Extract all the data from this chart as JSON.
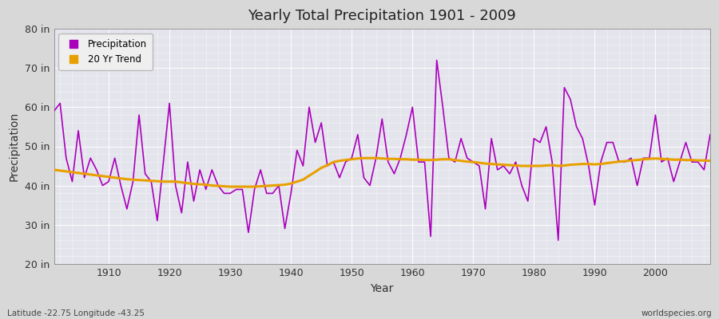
{
  "title": "Yearly Total Precipitation 1901 - 2009",
  "xlabel": "Year",
  "ylabel": "Precipitation",
  "lat_lon_label": "Latitude -22.75 Longitude -43.25",
  "watermark": "worldspecies.org",
  "ylim": [
    20,
    80
  ],
  "yticks": [
    20,
    30,
    40,
    50,
    60,
    70,
    80
  ],
  "ytick_labels": [
    "20 in",
    "30 in",
    "40 in",
    "50 in",
    "60 in",
    "70 in",
    "80 in"
  ],
  "xlim": [
    1901,
    2009
  ],
  "xticks": [
    1910,
    1920,
    1930,
    1940,
    1950,
    1960,
    1970,
    1980,
    1990,
    2000
  ],
  "precip_color": "#aa00bb",
  "trend_color": "#e8a000",
  "fig_bg_color": "#d8d8d8",
  "plot_bg_color": "#e4e4ec",
  "years": [
    1901,
    1902,
    1903,
    1904,
    1905,
    1906,
    1907,
    1908,
    1909,
    1910,
    1911,
    1912,
    1913,
    1914,
    1915,
    1916,
    1917,
    1918,
    1919,
    1920,
    1921,
    1922,
    1923,
    1924,
    1925,
    1926,
    1927,
    1928,
    1929,
    1930,
    1931,
    1932,
    1933,
    1934,
    1935,
    1936,
    1937,
    1938,
    1939,
    1940,
    1941,
    1942,
    1943,
    1944,
    1945,
    1946,
    1947,
    1948,
    1949,
    1950,
    1951,
    1952,
    1953,
    1954,
    1955,
    1956,
    1957,
    1958,
    1959,
    1960,
    1961,
    1962,
    1963,
    1964,
    1965,
    1966,
    1967,
    1968,
    1969,
    1970,
    1971,
    1972,
    1973,
    1974,
    1975,
    1976,
    1977,
    1978,
    1979,
    1980,
    1981,
    1982,
    1983,
    1984,
    1985,
    1986,
    1987,
    1988,
    1989,
    1990,
    1991,
    1992,
    1993,
    1994,
    1995,
    1996,
    1997,
    1998,
    1999,
    2000,
    2001,
    2002,
    2003,
    2004,
    2005,
    2006,
    2007,
    2008,
    2009
  ],
  "precip": [
    59,
    61,
    47,
    41,
    54,
    42,
    47,
    44,
    40,
    41,
    47,
    40,
    34,
    41,
    58,
    43,
    41,
    31,
    46,
    61,
    40,
    33,
    46,
    36,
    44,
    39,
    44,
    40,
    38,
    38,
    39,
    39,
    28,
    39,
    44,
    38,
    38,
    40,
    29,
    38,
    49,
    45,
    60,
    51,
    56,
    45,
    46,
    42,
    46,
    47,
    53,
    42,
    40,
    47,
    57,
    46,
    43,
    47,
    53,
    60,
    46,
    46,
    27,
    72,
    60,
    47,
    46,
    52,
    47,
    46,
    45,
    34,
    52,
    44,
    45,
    43,
    46,
    40,
    36,
    52,
    51,
    55,
    46,
    26,
    65,
    62,
    55,
    52,
    45,
    35,
    46,
    51,
    51,
    46,
    46,
    47,
    40,
    47,
    47,
    58,
    46,
    47,
    41,
    46,
    51,
    46,
    46,
    44,
    53
  ],
  "trend": [
    44.0,
    43.8,
    43.6,
    43.4,
    43.2,
    43.0,
    42.8,
    42.6,
    42.4,
    42.2,
    42.0,
    41.8,
    41.6,
    41.5,
    41.4,
    41.3,
    41.2,
    41.1,
    41.0,
    41.0,
    41.0,
    40.8,
    40.6,
    40.4,
    40.3,
    40.2,
    40.0,
    39.9,
    39.8,
    39.7,
    39.7,
    39.7,
    39.7,
    39.7,
    39.8,
    39.9,
    40.0,
    40.1,
    40.2,
    40.5,
    41.0,
    41.5,
    42.5,
    43.5,
    44.5,
    45.2,
    46.0,
    46.3,
    46.5,
    46.7,
    46.9,
    47.0,
    47.0,
    47.0,
    46.9,
    46.8,
    46.8,
    46.7,
    46.7,
    46.6,
    46.6,
    46.5,
    46.5,
    46.6,
    46.7,
    46.7,
    46.5,
    46.3,
    46.1,
    46.0,
    45.8,
    45.6,
    45.5,
    45.4,
    45.3,
    45.2,
    45.1,
    45.0,
    45.0,
    45.0,
    45.0,
    45.1,
    45.2,
    45.0,
    45.1,
    45.3,
    45.4,
    45.5,
    45.5,
    45.4,
    45.5,
    45.7,
    45.9,
    46.1,
    46.2,
    46.4,
    46.5,
    46.7,
    46.8,
    46.9,
    46.8,
    46.7,
    46.6,
    46.6,
    46.5,
    46.5,
    46.4,
    46.4,
    46.3
  ]
}
